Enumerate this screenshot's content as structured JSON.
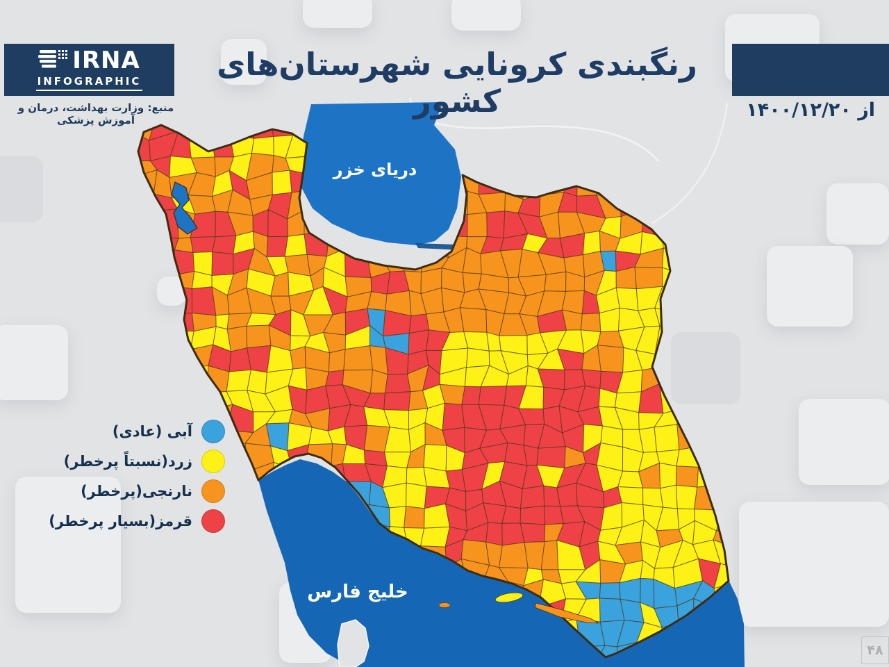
{
  "header": {
    "brand_name": "IRNA",
    "brand_sub": "INFOGRAPHIC",
    "title": "رنگبندی کرونایی شهرستان‌های کشور",
    "date_label": "از ۱۴۰۰/۱۲/۲۰",
    "source": "منبع: وزارت بهداشت، درمان و آموزش پزشکی"
  },
  "legend": {
    "items": [
      {
        "label": "آبی (عادی)",
        "color": "#3aa2dc"
      },
      {
        "label": "زرد(نسبتاً پرخطر)",
        "color": "#fdf115"
      },
      {
        "label": "نارنجی(پرخطر)",
        "color": "#f7941e"
      },
      {
        "label": "قرمز(بسیار پرخطر)",
        "color": "#ef4246"
      }
    ]
  },
  "map": {
    "sea_labels": {
      "caspian": "دریای خزر",
      "gulf": "خلیج فارس"
    },
    "colors": {
      "orange": "#f7941e",
      "yellow": "#fdf115",
      "red": "#ef4246",
      "blue": "#3aa2dc",
      "sea": "#1d74c4",
      "gulf": "#1567b6",
      "border": "#4a3216",
      "outline": "#3e2c12"
    },
    "zones": [
      {
        "b": [
          170,
          140,
          900,
          830
        ],
        "m": {
          "O": 0.52,
          "Y": 0.3,
          "R": 0.18
        }
      },
      {
        "b": [
          170,
          150,
          190,
          230
        ],
        "m": {
          "O": 0.5,
          "R": 0.27,
          "Y": 0.23
        }
      },
      {
        "b": [
          200,
          175,
          75,
          50
        ],
        "m": {
          "R": 0.85,
          "O": 0.15
        }
      },
      {
        "b": [
          193,
          283,
          65,
          85
        ],
        "m": {
          "R": 0.65,
          "O": 0.35
        }
      },
      {
        "b": [
          275,
          295,
          55,
          50
        ],
        "m": {
          "R": 0.7,
          "O": 0.3
        }
      },
      {
        "b": [
          290,
          330,
          145,
          165
        ],
        "m": {
          "O": 0.45,
          "R": 0.28,
          "Y": 0.27
        }
      },
      {
        "b": [
          235,
          355,
          85,
          210
        ],
        "m": {
          "Y": 0.5,
          "O": 0.35,
          "R": 0.15
        }
      },
      {
        "b": [
          430,
          330,
          255,
          72
        ],
        "m": {
          "O": 0.62,
          "R": 0.22,
          "Y": 0.16
        }
      },
      {
        "b": [
          555,
          355,
          235,
          125
        ],
        "m": {
          "O": 0.93,
          "Y": 0.07
        }
      },
      {
        "b": [
          695,
          262,
          220,
          105
        ],
        "m": {
          "R": 0.72,
          "O": 0.18,
          "Y": 0.1
        }
      },
      {
        "b": [
          848,
          325,
          145,
          95
        ],
        "m": {
          "O": 0.55,
          "Y": 0.33,
          "R": 0.12
        }
      },
      {
        "b": [
          915,
          300,
          55,
          130
        ],
        "m": {
          "Y": 0.8,
          "O": 0.2
        }
      },
      {
        "b": [
          875,
          395,
          120,
          180
        ],
        "m": {
          "Y": 0.7,
          "O": 0.2,
          "R": 0.1
        }
      },
      {
        "b": [
          638,
          468,
          165,
          155
        ],
        "m": {
          "Y": 0.85,
          "O": 0.15
        }
      },
      {
        "b": [
          540,
          465,
          105,
          105
        ],
        "m": {
          "R": 0.55,
          "O": 0.27,
          "Y": 0.18
        }
      },
      {
        "b": [
          245,
          430,
          200,
          145
        ],
        "m": {
          "O": 0.5,
          "Y": 0.28,
          "R": 0.22
        }
      },
      {
        "b": [
          268,
          520,
          175,
          185
        ],
        "m": {
          "Y": 0.58,
          "O": 0.3,
          "R": 0.12
        }
      },
      {
        "b": [
          428,
          548,
          155,
          165
        ],
        "m": {
          "R": 0.55,
          "Y": 0.25,
          "O": 0.2
        }
      },
      {
        "b": [
          555,
          620,
          115,
          125
        ],
        "m": {
          "Y": 0.5,
          "O": 0.32,
          "R": 0.18
        }
      },
      {
        "b": [
          428,
          690,
          225,
          135
        ],
        "m": {
          "O": 0.45,
          "Y": 0.38,
          "R": 0.17
        }
      },
      {
        "b": [
          645,
          545,
          245,
          320
        ],
        "m": {
          "R": 0.8,
          "O": 0.13,
          "Y": 0.07
        }
      },
      {
        "b": [
          852,
          555,
          210,
          320
        ],
        "m": {
          "Y": 0.88,
          "O": 0.08,
          "R": 0.04
        }
      },
      {
        "b": [
          580,
          798,
          305,
          85
        ],
        "m": {
          "O": 0.72,
          "Y": 0.23,
          "R": 0.05
        }
      },
      {
        "b": [
          845,
          848,
          175,
          105
        ],
        "m": {
          "B": 0.78,
          "Y": 0.22
        }
      },
      {
        "b": [
          504,
          700,
          47,
          135
        ],
        "m": {
          "B": 1
        }
      },
      {
        "c": [
          546,
          487,
          27
        ],
        "m": {
          "B": 1
        }
      },
      {
        "c": [
          584,
          527,
          26
        ],
        "m": {
          "R": 1
        }
      },
      {
        "c": [
          577,
          406,
          15
        ],
        "m": {
          "R": 1
        }
      },
      {
        "c": [
          413,
          628,
          14
        ],
        "m": {
          "B": 1
        }
      },
      {
        "c": [
          872,
          374,
          12
        ],
        "m": {
          "B": 1
        }
      },
      {
        "c": [
          972,
          646,
          9
        ],
        "m": {
          "R": 1
        }
      },
      {
        "c": [
          952,
          308,
          22
        ],
        "m": {
          "R": 1
        }
      }
    ]
  },
  "watermark": "۴۸"
}
